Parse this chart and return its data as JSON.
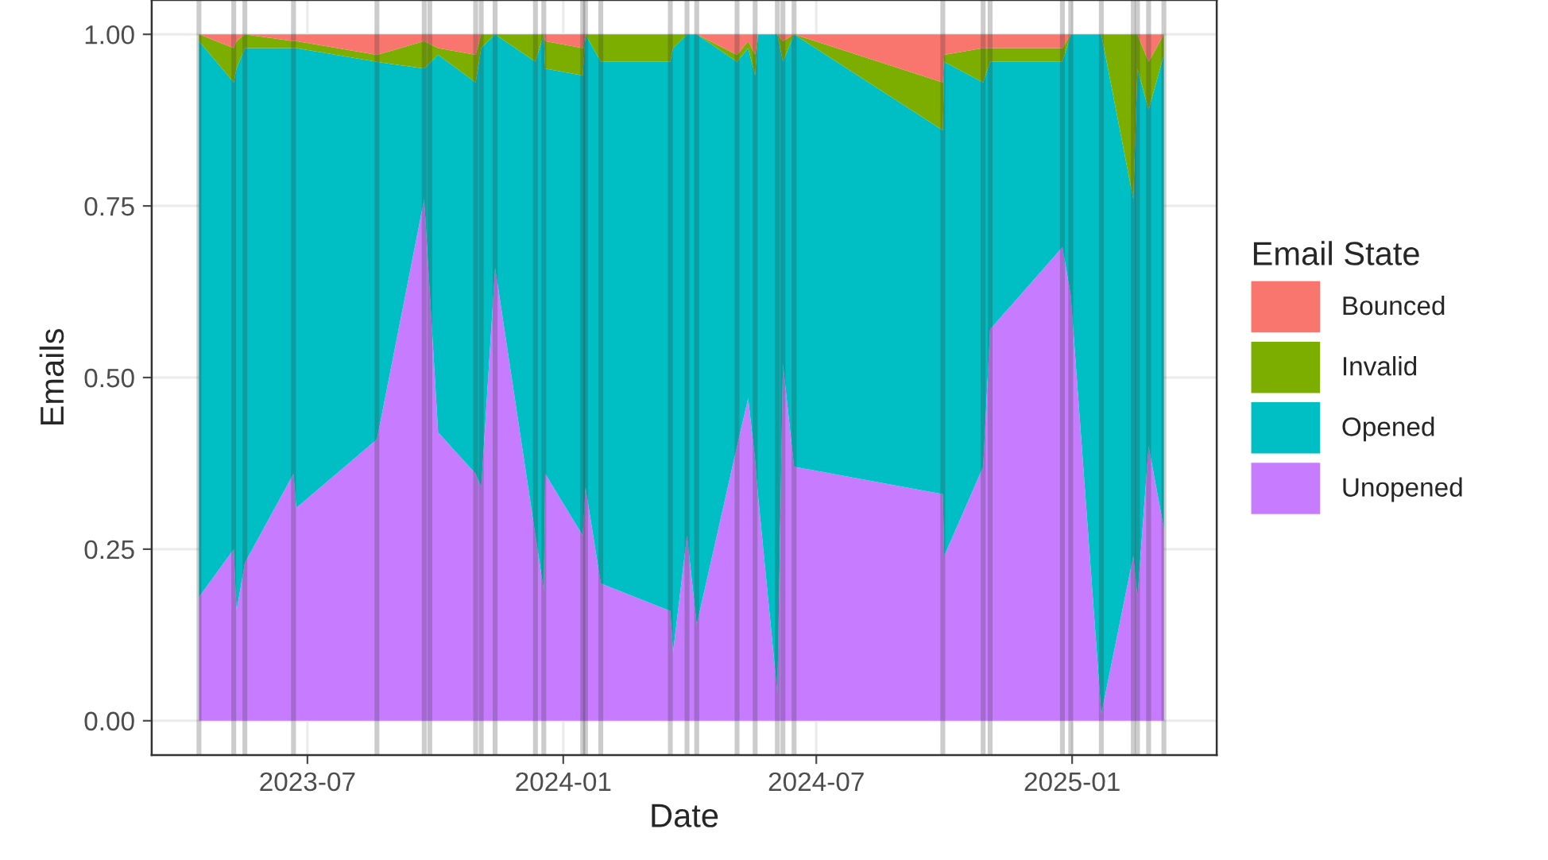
{
  "chart_data": {
    "type": "area",
    "stacked": true,
    "xlabel": "Date",
    "ylabel": "Emails",
    "legend_title": "Email State",
    "legend": "right",
    "grid": true,
    "x": [
      "2023-04-14",
      "2023-05-09",
      "2023-05-11",
      "2023-05-17",
      "2023-06-21",
      "2023-06-23",
      "2023-08-20",
      "2023-09-23",
      "2023-10-03",
      "2023-10-30",
      "2023-11-03",
      "2023-11-13",
      "2023-12-12",
      "2023-12-18",
      "2023-12-19",
      "2024-01-15",
      "2024-01-17",
      "2024-01-28",
      "2024-03-18",
      "2024-03-20",
      "2024-03-30",
      "2024-04-06",
      "2024-05-05",
      "2024-05-13",
      "2024-05-18",
      "2024-05-20",
      "2024-06-03",
      "2024-06-07",
      "2024-06-15",
      "2024-09-30",
      "2024-10-01",
      "2024-10-29",
      "2024-11-03",
      "2024-12-25",
      "2024-12-31",
      "2025-01-22",
      "2025-02-14",
      "2025-02-17",
      "2025-02-25",
      "2025-03-08"
    ],
    "series": [
      {
        "name": "Unopened",
        "color": "#c77cff",
        "values": [
          0.18,
          0.25,
          0.16,
          0.23,
          0.36,
          0.31,
          0.41,
          0.76,
          0.42,
          0.36,
          0.34,
          0.66,
          0.27,
          0.19,
          0.36,
          0.27,
          0.34,
          0.2,
          0.16,
          0.1,
          0.27,
          0.14,
          0.4,
          0.47,
          0.38,
          0.33,
          0.04,
          0.52,
          0.37,
          0.33,
          0.24,
          0.37,
          0.57,
          0.69,
          0.62,
          0.01,
          0.24,
          0.18,
          0.4,
          0.28
        ]
      },
      {
        "name": "Opened",
        "color": "#00bfc4",
        "values": [
          0.81,
          0.68,
          0.79,
          0.75,
          0.62,
          0.67,
          0.55,
          0.19,
          0.55,
          0.57,
          0.64,
          0.34,
          0.69,
          0.81,
          0.59,
          0.67,
          0.66,
          0.76,
          0.8,
          0.88,
          0.73,
          0.86,
          0.56,
          0.51,
          0.56,
          0.67,
          0.96,
          0.44,
          0.63,
          0.53,
          0.72,
          0.56,
          0.39,
          0.27,
          0.38,
          0.99,
          0.52,
          0.77,
          0.49,
          0.69
        ]
      },
      {
        "name": "Invalid",
        "color": "#7cae00",
        "values": [
          0.01,
          0.05,
          0.04,
          0.02,
          0.01,
          0.01,
          0.01,
          0.04,
          0.01,
          0.04,
          0.02,
          0,
          0.04,
          0,
          0.04,
          0.04,
          0,
          0.04,
          0.04,
          0.02,
          0,
          0,
          0.01,
          0.01,
          0.03,
          0,
          0,
          0.03,
          0,
          0.07,
          0.01,
          0.05,
          0.02,
          0.02,
          0,
          0,
          0.24,
          0.05,
          0.07,
          0.03
        ]
      },
      {
        "name": "Bounced",
        "color": "#f8766d",
        "values": [
          0,
          0.02,
          0.01,
          0,
          0.01,
          0.01,
          0.03,
          0.01,
          0.02,
          0.03,
          0,
          0,
          0,
          0,
          0.01,
          0.02,
          0,
          0,
          0,
          0,
          0,
          0,
          0.03,
          0.01,
          0.03,
          0,
          0,
          0.01,
          0,
          0.07,
          0.03,
          0.02,
          0.02,
          0.02,
          0,
          0,
          0,
          0,
          0.04,
          0
        ]
      }
    ],
    "xlim": [
      "2023-03-11",
      "2025-04-15"
    ],
    "xticks": [
      {
        "value": "2023-07-01",
        "label": "2023-07"
      },
      {
        "value": "2024-01-01",
        "label": "2024-01"
      },
      {
        "value": "2024-07-01",
        "label": "2024-07"
      },
      {
        "value": "2025-01-01",
        "label": "2025-01"
      }
    ],
    "ylim": [
      -0.05,
      1.05
    ],
    "yticks": [
      {
        "value": 0,
        "label": "0.00"
      },
      {
        "value": 0.25,
        "label": "0.25"
      },
      {
        "value": 0.5,
        "label": "0.50"
      },
      {
        "value": 0.75,
        "label": "0.75"
      },
      {
        "value": 1,
        "label": "1.00"
      }
    ],
    "ref_lines": [
      {
        "axis": "x",
        "value": "2023-04-14",
        "color": "#333333"
      },
      {
        "axis": "x",
        "value": "2023-05-09",
        "color": "#333333"
      },
      {
        "axis": "x",
        "value": "2023-05-17",
        "color": "#333333"
      },
      {
        "axis": "x",
        "value": "2023-06-21",
        "color": "#333333"
      },
      {
        "axis": "x",
        "value": "2023-08-20",
        "color": "#333333"
      },
      {
        "axis": "x",
        "value": "2023-09-23",
        "color": "#333333"
      },
      {
        "axis": "x",
        "value": "2023-09-27",
        "color": "#333333"
      },
      {
        "axis": "x",
        "value": "2023-10-30",
        "color": "#333333"
      },
      {
        "axis": "x",
        "value": "2023-11-03",
        "color": "#333333"
      },
      {
        "axis": "x",
        "value": "2023-11-13",
        "color": "#333333"
      },
      {
        "axis": "x",
        "value": "2023-12-12",
        "color": "#333333"
      },
      {
        "axis": "x",
        "value": "2023-12-18",
        "color": "#333333"
      },
      {
        "axis": "x",
        "value": "2024-01-15",
        "color": "#333333"
      },
      {
        "axis": "x",
        "value": "2024-01-17",
        "color": "#333333"
      },
      {
        "axis": "x",
        "value": "2024-01-28",
        "color": "#333333"
      },
      {
        "axis": "x",
        "value": "2024-03-18",
        "color": "#333333"
      },
      {
        "axis": "x",
        "value": "2024-03-30",
        "color": "#333333"
      },
      {
        "axis": "x",
        "value": "2024-04-06",
        "color": "#333333"
      },
      {
        "axis": "x",
        "value": "2024-05-05",
        "color": "#333333"
      },
      {
        "axis": "x",
        "value": "2024-05-18",
        "color": "#333333"
      },
      {
        "axis": "x",
        "value": "2024-06-03",
        "color": "#333333"
      },
      {
        "axis": "x",
        "value": "2024-06-07",
        "color": "#333333"
      },
      {
        "axis": "x",
        "value": "2024-06-15",
        "color": "#333333"
      },
      {
        "axis": "x",
        "value": "2024-09-30",
        "color": "#333333"
      },
      {
        "axis": "x",
        "value": "2024-10-29",
        "color": "#333333"
      },
      {
        "axis": "x",
        "value": "2024-11-03",
        "color": "#333333"
      },
      {
        "axis": "x",
        "value": "2024-12-25",
        "color": "#333333"
      },
      {
        "axis": "x",
        "value": "2024-12-31",
        "color": "#333333"
      },
      {
        "axis": "x",
        "value": "2025-01-22",
        "color": "#333333"
      },
      {
        "axis": "x",
        "value": "2025-02-14",
        "color": "#333333"
      },
      {
        "axis": "x",
        "value": "2025-02-17",
        "color": "#333333"
      },
      {
        "axis": "x",
        "value": "2025-02-25",
        "color": "#333333"
      },
      {
        "axis": "x",
        "value": "2025-03-08",
        "color": "#333333"
      }
    ]
  }
}
